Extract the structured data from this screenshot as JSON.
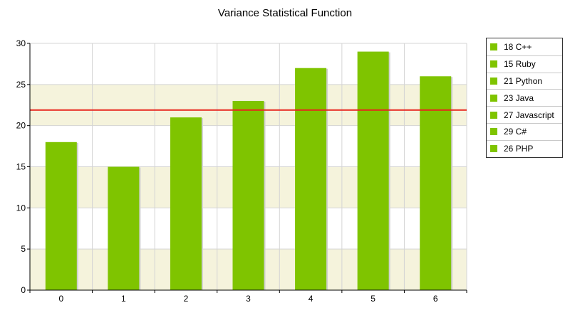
{
  "chart_data": {
    "type": "bar",
    "title": "Variance Statistical Function",
    "categories": [
      "0",
      "1",
      "2",
      "3",
      "4",
      "5",
      "6"
    ],
    "values": [
      18,
      15,
      21,
      23,
      27,
      29,
      26
    ],
    "ylim": [
      0,
      30
    ],
    "yticks": [
      0,
      5,
      10,
      15,
      20,
      25,
      30
    ],
    "reference_line": {
      "value": 21.9,
      "color": "#e8251d"
    },
    "bar_color": "#7fc400",
    "band_color": "#f5f3dc",
    "grid": true,
    "legend": {
      "position": "right",
      "entries": [
        "18 C++",
        "15 Ruby",
        "21 Python",
        "23 Java",
        "27 Javascript",
        "29 C#",
        "26 PHP"
      ]
    }
  }
}
